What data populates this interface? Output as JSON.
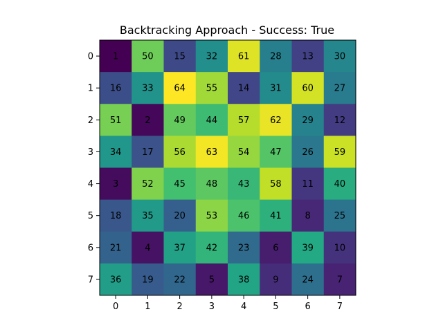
{
  "chart_data": {
    "type": "heatmap",
    "title": "Backtracking Approach - Success: True",
    "xlabel": "",
    "ylabel": "",
    "x_ticks": [
      "0",
      "1",
      "2",
      "3",
      "4",
      "5",
      "6",
      "7"
    ],
    "y_ticks": [
      "0",
      "1",
      "2",
      "3",
      "4",
      "5",
      "6",
      "7"
    ],
    "colormap": "viridis",
    "vmin": 1,
    "vmax": 64,
    "grid": false,
    "values": [
      [
        1,
        50,
        15,
        32,
        61,
        28,
        13,
        30
      ],
      [
        16,
        33,
        64,
        55,
        14,
        31,
        60,
        27
      ],
      [
        51,
        2,
        49,
        44,
        57,
        62,
        29,
        12
      ],
      [
        34,
        17,
        56,
        63,
        54,
        47,
        26,
        59
      ],
      [
        3,
        52,
        45,
        48,
        43,
        58,
        11,
        40
      ],
      [
        18,
        35,
        20,
        53,
        46,
        41,
        8,
        25
      ],
      [
        21,
        4,
        37,
        42,
        23,
        6,
        39,
        10
      ],
      [
        36,
        19,
        22,
        5,
        38,
        9,
        24,
        7
      ]
    ]
  }
}
